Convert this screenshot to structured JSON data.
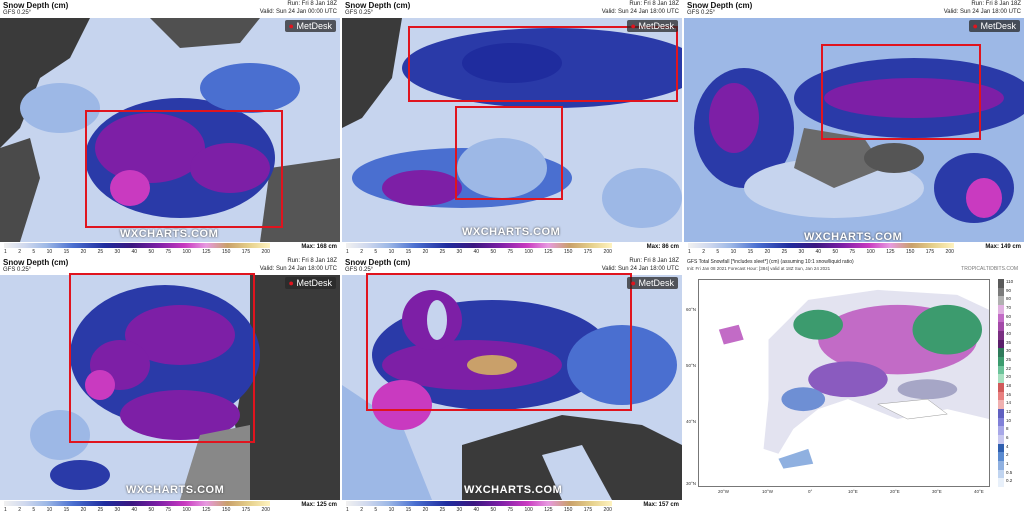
{
  "panels": [
    {
      "title": "Snow Depth (cm)",
      "model": "GFS 0.25°",
      "run": "Run: Fri 8 Jan 18Z",
      "valid": "Valid: Sun 24 Jan 00:00 UTC",
      "max": "Max: 168 cm",
      "logo": "MetDesk",
      "watermark": "WXCHARTS.COM"
    },
    {
      "title": "Snow Depth (cm)",
      "model": "GFS 0.25°",
      "run": "Run: Fri 8 Jan 18Z",
      "valid": "Valid: Sun 24 Jan 18:00 UTC",
      "max": "Max: 86 cm",
      "logo": "MetDesk",
      "watermark": "WXCHARTS.COM"
    },
    {
      "title": "Snow Depth (cm)",
      "model": "GFS 0.25°",
      "run": "Run: Fri 8 Jan 18Z",
      "valid": "Valid: Sun 24 Jan 18:00 UTC",
      "max": "Max: 149 cm",
      "logo": "MetDesk",
      "watermark": "WXCHARTS.COM"
    },
    {
      "title": "Snow Depth (cm)",
      "model": "GFS 0.25°",
      "run": "Run: Fri 8 Jan 18Z",
      "valid": "Valid: Sun 24 Jan 18:00 UTC",
      "max": "Max: 125 cm",
      "logo": "MetDesk",
      "watermark": "WXCHARTS.COM"
    },
    {
      "title": "Snow Depth (cm)",
      "model": "GFS 0.25°",
      "run": "Run: Fri 8 Jan 18Z",
      "valid": "Valid: Sun 24 Jan 18:00 UTC",
      "max": "Max: 157 cm",
      "logo": "MetDesk",
      "watermark": "WXCHARTS.COM"
    }
  ],
  "colorbar_ticks": [
    "1",
    "2",
    "5",
    "10",
    "15",
    "20",
    "25",
    "30",
    "40",
    "50",
    "75",
    "100",
    "125",
    "150",
    "175",
    "200"
  ],
  "tropical": {
    "title": "GFS Total Snowfall [*includes sleet*] (cm) (assuming 10:1 snow/liquid ratio)",
    "subtitle": "Init: Fri Jan 08 2021   Forecast Hour: [384]   valid at 18Z Sun, Jan 24 2021",
    "brand": "TROPICALTIDBITS.COM",
    "lat_labels": [
      "60°N",
      "50°N",
      "40°N",
      "30°N"
    ],
    "lon_labels": [
      "20°W",
      "10°W",
      "0°",
      "10°E",
      "20°E",
      "30°E",
      "40°E"
    ],
    "legend_values": [
      "110",
      "90",
      "80",
      "70",
      "60",
      "50",
      "40",
      "35",
      "30",
      "25",
      "22",
      "20",
      "18",
      "16",
      "14",
      "12",
      "10",
      "8",
      "6",
      "4",
      "2",
      "1",
      "0.5",
      "0.2"
    ]
  },
  "colors": {
    "highlight_box": "#e0141e",
    "sea": "#3a3a3a",
    "snow_light": "#c6d4ee",
    "snow_mid": "#2a3aa8",
    "snow_heavy": "#7d1fa6"
  }
}
